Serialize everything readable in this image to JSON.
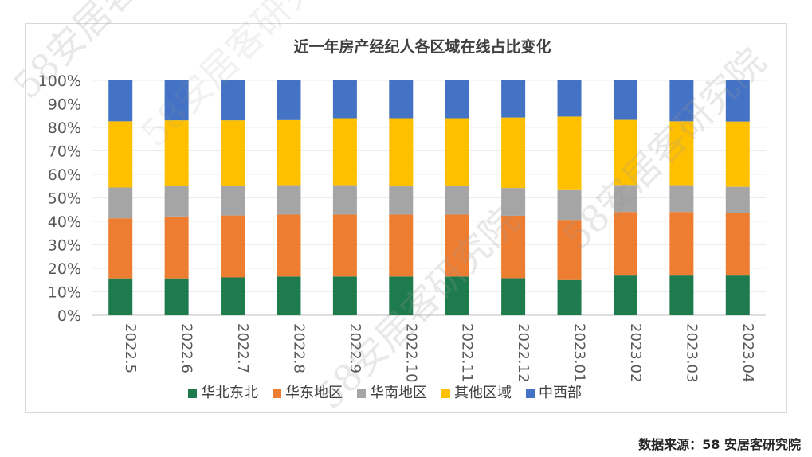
{
  "source_label": "数据来源：",
  "source_value": "58 安居客研究院",
  "watermark_text": "58安居客研究院",
  "chart_data": {
    "type": "stacked_bar_100",
    "title": "近一年房产经纪人各区域在线占比变化",
    "categories": [
      "2022.5",
      "2022.6",
      "2022.7",
      "2022.8",
      "2022.9",
      "2022.10",
      "2022.11",
      "2022.12",
      "2023.01",
      "2023.02",
      "2023.03",
      "2023.04"
    ],
    "ylim": [
      0,
      100
    ],
    "yticks": [
      "0%",
      "10%",
      "20%",
      "30%",
      "40%",
      "50%",
      "60%",
      "70%",
      "80%",
      "90%",
      "100%"
    ],
    "legend_position": "bottom",
    "series": [
      {
        "name": "华北东北",
        "color": "#1e7b4e",
        "values": [
          15.7,
          15.7,
          16.1,
          16.5,
          16.5,
          16.5,
          16.5,
          15.8,
          15.0,
          16.9,
          16.9,
          16.9
        ]
      },
      {
        "name": "华东地区",
        "color": "#ed7d31",
        "values": [
          25.6,
          26.4,
          26.4,
          26.4,
          26.4,
          26.4,
          26.4,
          26.6,
          25.6,
          27.1,
          27.1,
          26.5
        ]
      },
      {
        "name": "华南地区",
        "color": "#a5a5a5",
        "values": [
          13.1,
          12.9,
          12.5,
          12.5,
          12.5,
          12.0,
          12.2,
          11.8,
          12.7,
          11.5,
          11.4,
          11.3
        ]
      },
      {
        "name": "其他区域",
        "color": "#ffc000",
        "values": [
          28.2,
          28.0,
          28.0,
          27.7,
          28.5,
          29.0,
          28.8,
          30.0,
          31.3,
          27.7,
          27.2,
          27.8
        ]
      },
      {
        "name": "中西部",
        "color": "#4472c4",
        "values": [
          17.4,
          17.0,
          17.0,
          16.9,
          16.1,
          16.1,
          16.1,
          15.8,
          15.4,
          16.8,
          17.4,
          17.5
        ]
      }
    ]
  }
}
